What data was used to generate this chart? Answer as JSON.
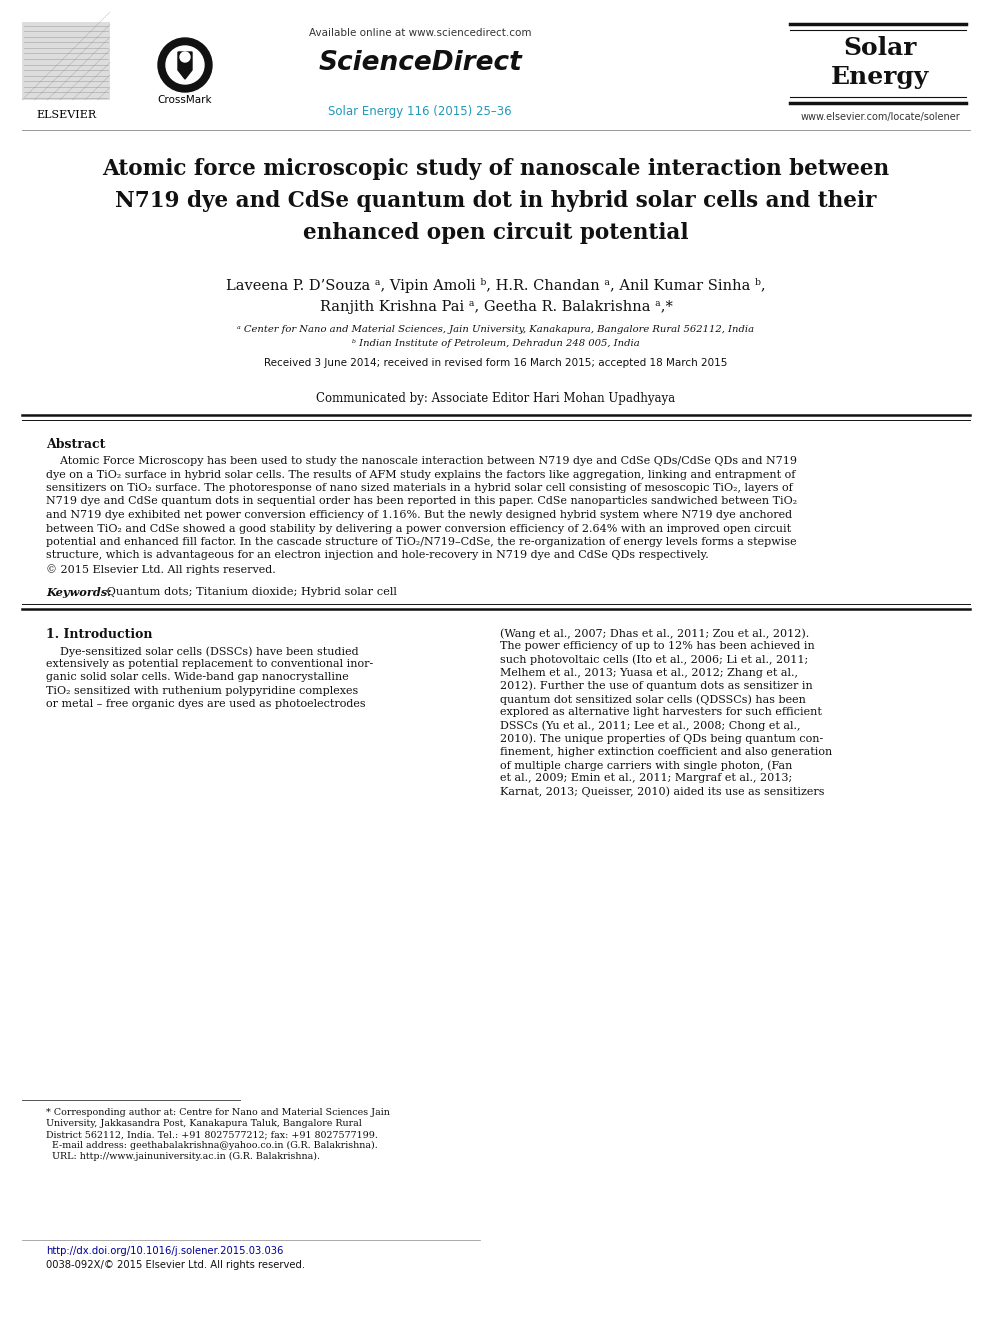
{
  "bg_color": "#ffffff",
  "header": {
    "elsevier_text": "ELSEVIER",
    "crossmark_text": "CrossMark",
    "available_online": "Available online at www.sciencedirect.com",
    "sciencedirect": "ScienceDirect",
    "journal_ref": "Solar Energy 116 (2015) 25–36",
    "journal_ref_color": "#2299bb",
    "solar_line1": "Solar",
    "solar_line2": "Energy",
    "website": "www.elsevier.com/locate/solener"
  },
  "title_line1": "Atomic force microscopic study of nanoscale interaction between",
  "title_line2": "N719 dye and CdSe quantum dot in hybrid solar cells and their",
  "title_line3": "enhanced open circuit potential",
  "authors_line1": "Laveena P. D’Souza ᵃ, Vipin Amoli ᵇ, H.R. Chandan ᵃ, Anil Kumar Sinha ᵇ,",
  "authors_line2": "Ranjith Krishna Pai ᵃ, Geetha R. Balakrishna ᵃ,*",
  "affil_a": "ᵃ Center for Nano and Material Sciences, Jain University, Kanakapura, Bangalore Rural 562112, India",
  "affil_b": "ᵇ Indian Institute of Petroleum, Dehradun 248 005, India",
  "received": "Received 3 June 2014; received in revised form 16 March 2015; accepted 18 March 2015",
  "communicated": "Communicated by: Associate Editor Hari Mohan Upadhyaya",
  "abstract_title": "Abstract",
  "abstract_line1": "    Atomic Force Microscopy has been used to study the nanoscale interaction between N719 dye and CdSe QDs/CdSe QDs and N719",
  "abstract_line2": "dye on a TiO₂ surface in hybrid solar cells. The results of AFM study explains the factors like aggregation, linking and entrapment of",
  "abstract_line3": "sensitizers on TiO₂ surface. The photoresponse of nano sized materials in a hybrid solar cell consisting of mesoscopic TiO₂, layers of",
  "abstract_line4": "N719 dye and CdSe quantum dots in sequential order has been reported in this paper. CdSe nanoparticles sandwiched between TiO₂",
  "abstract_line5": "and N719 dye exhibited net power conversion efficiency of 1.16%. But the newly designed hybrid system where N719 dye anchored",
  "abstract_line6": "between TiO₂ and CdSe showed a good stability by delivering a power conversion efficiency of 2.64% with an improved open circuit",
  "abstract_line7": "potential and enhanced fill factor. In the cascade structure of TiO₂/N719–CdSe, the re-organization of energy levels forms a stepwise",
  "abstract_line8": "structure, which is advantageous for an electron injection and hole-recovery in N719 dye and CdSe QDs respectively.",
  "abstract_line9": "© 2015 Elsevier Ltd. All rights reserved.",
  "keywords_label": "Keywords:",
  "keywords_text": " Quantum dots; Titanium dioxide; Hybrid solar cell",
  "intro_heading": "1. Introduction",
  "intro_left_lines": [
    "    Dye-sensitized solar cells (DSSCs) have been studied",
    "extensively as potential replacement to conventional inor-",
    "ganic solid solar cells. Wide-band gap nanocrystalline",
    "TiO₂ sensitized with ruthenium polypyridine complexes",
    "or metal – free organic dyes are used as photoelectrodes"
  ],
  "intro_right_lines": [
    "(Wang et al., 2007; Dhas et al., 2011; Zou et al., 2012).",
    "The power efficiency of up to 12% has been achieved in",
    "such photovoltaic cells (Ito et al., 2006; Li et al., 2011;",
    "Melhem et al., 2013; Yuasa et al., 2012; Zhang et al.,",
    "2012). Further the use of quantum dots as sensitizer in",
    "quantum dot sensitized solar cells (QDSSCs) has been",
    "explored as alternative light harvesters for such efficient",
    "DSSCs (Yu et al., 2011; Lee et al., 2008; Chong et al.,",
    "2010). The unique properties of QDs being quantum con-",
    "finement, higher extinction coefficient and also generation",
    "of multiple charge carriers with single photon, (Fan",
    "et al., 2009; Emin et al., 2011; Margraf et al., 2013;",
    "Karnat, 2013; Queisser, 2010) aided its use as sensitizers"
  ],
  "footnote_lines": [
    "* Corresponding author at: Centre for Nano and Material Sciences Jain",
    "University, Jakkasandra Post, Kanakapura Taluk, Bangalore Rural",
    "District 562112, India. Tel.: +91 8027577212; fax: +91 8027577199.",
    "  E-mail address: geethabalakrishna@yahoo.co.in (G.R. Balakrishna).",
    "  URL: http://www.jainuniversity.ac.in (G.R. Balakrishna)."
  ],
  "doi_text": "http://dx.doi.org/10.1016/j.solener.2015.03.036",
  "issn_text": "0038-092X/© 2015 Elsevier Ltd. All rights reserved.",
  "link_color": "#000099",
  "accent_color": "#2299bb",
  "text_color": "#000000"
}
